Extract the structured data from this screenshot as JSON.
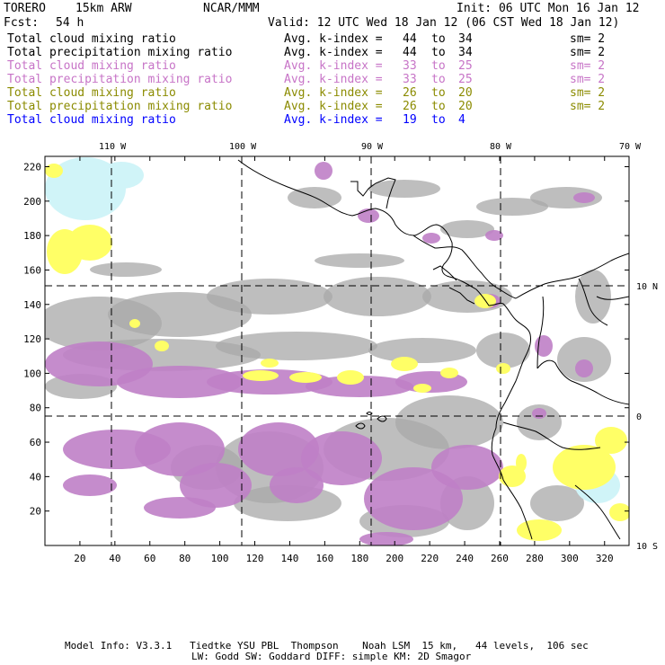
{
  "header": {
    "model": "TORERO",
    "resolution": "15km ARW",
    "org": "NCAR/MMM",
    "init": "Init: 06 UTC Mon 16 Jan 12",
    "fcst_label": "Fcst:",
    "fcst_value": "54 h",
    "valid": "Valid: 12 UTC Wed 18 Jan 12 (06 CST Wed 18 Jan 12)"
  },
  "legend": [
    {
      "name": "Total cloud mixing ratio",
      "avg": "Avg. k-index =",
      "from": "44",
      "to_word": "to",
      "to": "34",
      "sm": "sm= 2",
      "color": "#000000"
    },
    {
      "name": "Total precipitation mixing ratio",
      "avg": "Avg. k-index =",
      "from": "44",
      "to_word": "to",
      "to": "34",
      "sm": "sm= 2",
      "color": "#000000"
    },
    {
      "name": "Total cloud mixing ratio",
      "avg": "Avg. k-index =",
      "from": "33",
      "to_word": "to",
      "to": "25",
      "sm": "sm= 2",
      "color": "#c774c7"
    },
    {
      "name": "Total precipitation mixing ratio",
      "avg": "Avg. k-index =",
      "from": "33",
      "to_word": "to",
      "to": "25",
      "sm": "sm= 2",
      "color": "#c774c7"
    },
    {
      "name": "Total cloud mixing ratio",
      "avg": "Avg. k-index =",
      "from": "26",
      "to_word": "to",
      "to": "20",
      "sm": "sm= 2",
      "color": "#8b8b00"
    },
    {
      "name": "Total precipitation mixing ratio",
      "avg": "Avg. k-index =",
      "from": "26",
      "to_word": "to",
      "to": "20",
      "sm": "sm= 2",
      "color": "#8b8b00"
    },
    {
      "name": "Total cloud mixing ratio",
      "avg": "Avg. k-index =",
      "from": "19",
      "to_word": "to",
      "to": "4",
      "sm": "",
      "color": "#0000ff"
    }
  ],
  "map": {
    "lon_labels": [
      "110 W",
      "100 W",
      "90 W",
      "80 W",
      "70 W"
    ],
    "lat_labels": [
      "10 N",
      "0",
      "10 S"
    ],
    "x_ticks": [
      "20",
      "40",
      "60",
      "80",
      "100",
      "120",
      "140",
      "160",
      "180",
      "200",
      "220",
      "240",
      "260",
      "280",
      "300",
      "320"
    ],
    "y_ticks": [
      "20",
      "40",
      "60",
      "80",
      "100",
      "120",
      "140",
      "160",
      "180",
      "200",
      "220"
    ],
    "x_range": [
      0,
      334
    ],
    "y_range": [
      0,
      226
    ],
    "colors": {
      "gray_cloud": "#a8a8a8",
      "purple_cloud": "#bf7fc7",
      "yellow_precip": "#ffff66",
      "ice_cloud": "#d0f4f8"
    }
  },
  "footer": {
    "line1": "Model Info: V3.3.1   Tiedtke YSU PBL  Thompson    Noah LSM  15 km,   44 levels,  106 sec",
    "line2": "LW: Godd SW: Goddard DIFF: simple KM: 2D Smagor"
  }
}
